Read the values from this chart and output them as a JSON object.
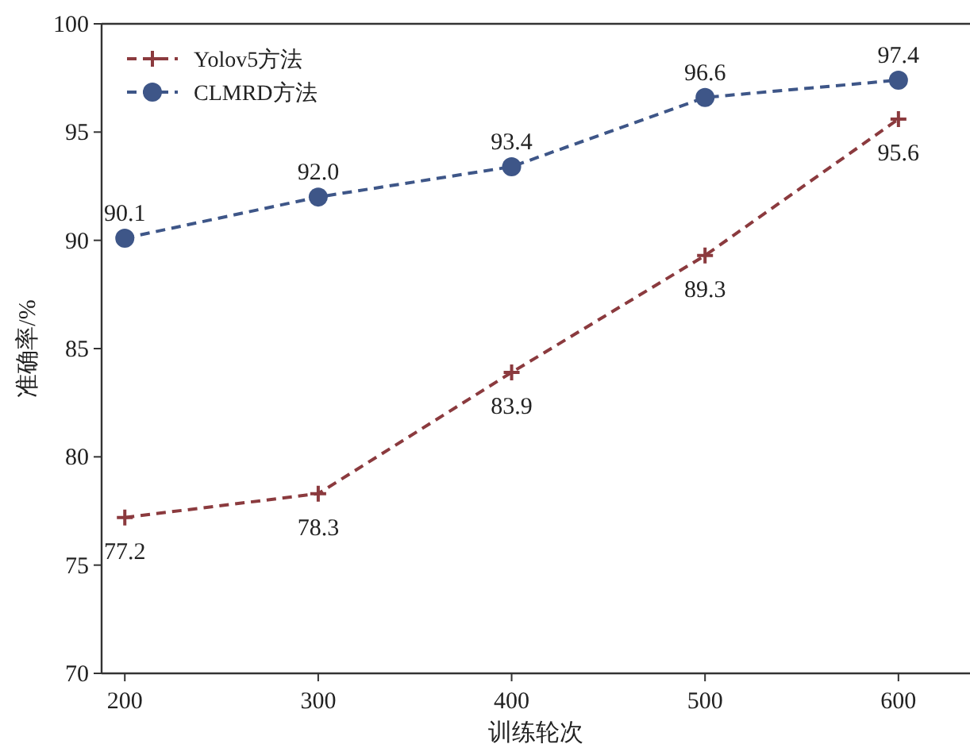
{
  "chart_data": {
    "type": "line",
    "xlabel": "训练轮次",
    "ylabel": "准确率/%",
    "x": [
      200,
      300,
      400,
      500,
      600
    ],
    "xlim": [
      188,
      637
    ],
    "xticks": [
      200,
      300,
      400,
      500,
      600
    ],
    "ylim": [
      70,
      100
    ],
    "yticks": [
      70,
      75,
      80,
      85,
      90,
      95,
      100
    ],
    "series": [
      {
        "name": "Yolov5方法",
        "color": "#8b3a3e",
        "marker": "cross",
        "values": [
          77.2,
          78.3,
          83.9,
          89.3,
          95.6
        ],
        "value_labels": [
          "77.2",
          "78.3",
          "83.9",
          "89.3",
          "95.6"
        ]
      },
      {
        "name": "CLMRD方法",
        "color": "#3e5688",
        "marker": "circle",
        "values": [
          90.1,
          92.0,
          93.4,
          96.6,
          97.4
        ],
        "value_labels": [
          "90.1",
          "92.0",
          "93.4",
          "96.6",
          "97.4"
        ]
      }
    ],
    "line_style": "dashed",
    "legend": "top left",
    "grid": false
  }
}
